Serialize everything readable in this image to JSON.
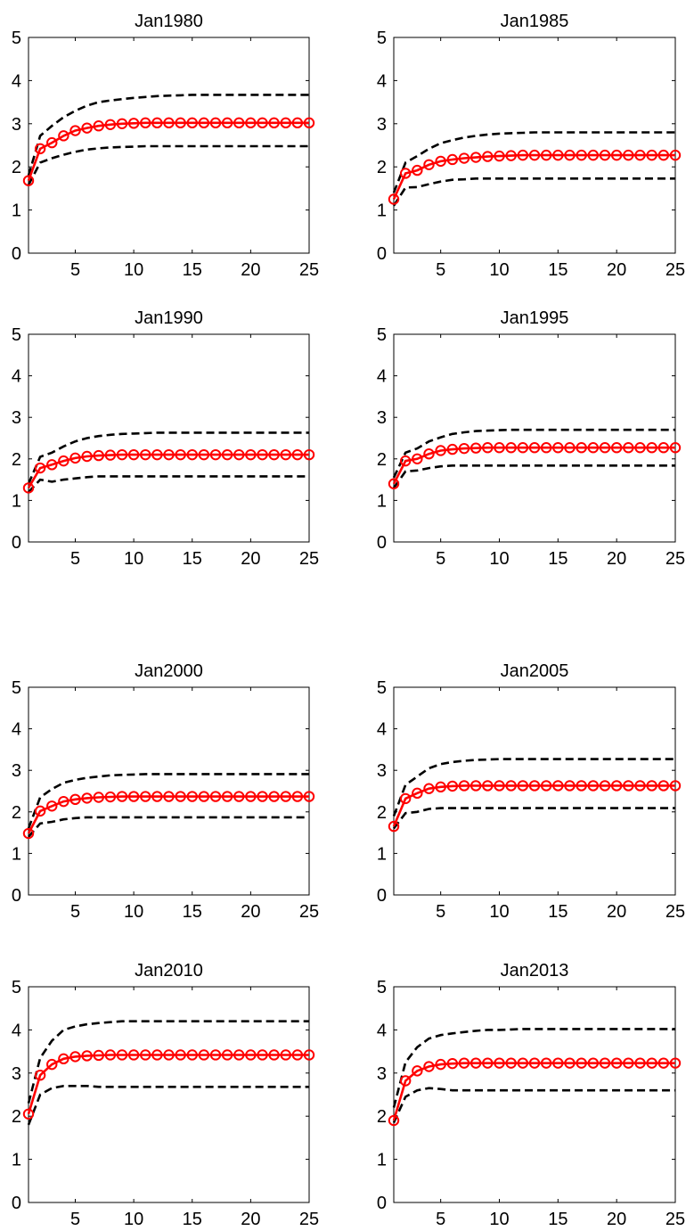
{
  "chart_data": [
    {
      "type": "line",
      "title": "Jan1980",
      "xlim": [
        1,
        25
      ],
      "ylim": [
        0,
        5
      ],
      "xticks": [
        5,
        10,
        15,
        20,
        25
      ],
      "yticks": [
        0,
        1,
        2,
        3,
        4,
        5
      ],
      "x": [
        1,
        2,
        3,
        4,
        5,
        6,
        7,
        8,
        9,
        10,
        11,
        12,
        13,
        14,
        15,
        16,
        17,
        18,
        19,
        20,
        21,
        22,
        23,
        24,
        25
      ],
      "series": [
        {
          "role": "upper",
          "style": "dashed",
          "color": "#000000",
          "values": [
            1.8,
            2.72,
            2.95,
            3.15,
            3.3,
            3.42,
            3.5,
            3.54,
            3.57,
            3.6,
            3.62,
            3.64,
            3.65,
            3.66,
            3.67,
            3.67,
            3.67,
            3.67,
            3.67,
            3.67,
            3.67,
            3.67,
            3.67,
            3.67,
            3.67
          ]
        },
        {
          "role": "estimate",
          "style": "solid-circle",
          "color": "#ff0000",
          "values": [
            1.68,
            2.42,
            2.56,
            2.72,
            2.84,
            2.9,
            2.95,
            2.98,
            3.0,
            3.01,
            3.02,
            3.02,
            3.02,
            3.02,
            3.02,
            3.02,
            3.02,
            3.02,
            3.02,
            3.02,
            3.02,
            3.02,
            3.02,
            3.02,
            3.02
          ]
        },
        {
          "role": "lower",
          "style": "dashed",
          "color": "#000000",
          "values": [
            1.58,
            2.1,
            2.2,
            2.28,
            2.35,
            2.4,
            2.43,
            2.45,
            2.46,
            2.47,
            2.48,
            2.48,
            2.48,
            2.48,
            2.48,
            2.48,
            2.48,
            2.48,
            2.48,
            2.48,
            2.48,
            2.48,
            2.48,
            2.48,
            2.48
          ]
        }
      ]
    },
    {
      "type": "line",
      "title": "Jan1985",
      "xlim": [
        1,
        25
      ],
      "ylim": [
        0,
        5
      ],
      "xticks": [
        5,
        10,
        15,
        20,
        25
      ],
      "yticks": [
        0,
        1,
        2,
        3,
        4,
        5
      ],
      "x": [
        1,
        2,
        3,
        4,
        5,
        6,
        7,
        8,
        9,
        10,
        11,
        12,
        13,
        14,
        15,
        16,
        17,
        18,
        19,
        20,
        21,
        22,
        23,
        24,
        25
      ],
      "series": [
        {
          "role": "upper",
          "style": "dashed",
          "color": "#000000",
          "values": [
            1.4,
            2.1,
            2.25,
            2.42,
            2.55,
            2.62,
            2.68,
            2.72,
            2.75,
            2.77,
            2.78,
            2.79,
            2.8,
            2.8,
            2.8,
            2.8,
            2.8,
            2.8,
            2.8,
            2.8,
            2.8,
            2.8,
            2.8,
            2.8,
            2.8
          ]
        },
        {
          "role": "estimate",
          "style": "solid-circle",
          "color": "#ff0000",
          "values": [
            1.25,
            1.85,
            1.92,
            2.05,
            2.13,
            2.17,
            2.2,
            2.22,
            2.24,
            2.25,
            2.26,
            2.27,
            2.27,
            2.27,
            2.27,
            2.27,
            2.27,
            2.27,
            2.27,
            2.27,
            2.27,
            2.27,
            2.27,
            2.27,
            2.27
          ]
        },
        {
          "role": "lower",
          "style": "dashed",
          "color": "#000000",
          "values": [
            1.1,
            1.52,
            1.53,
            1.6,
            1.66,
            1.7,
            1.71,
            1.73,
            1.73,
            1.73,
            1.73,
            1.73,
            1.73,
            1.73,
            1.73,
            1.73,
            1.73,
            1.73,
            1.73,
            1.73,
            1.73,
            1.73,
            1.73,
            1.73,
            1.73
          ]
        }
      ]
    },
    {
      "type": "line",
      "title": "Jan1990",
      "xlim": [
        1,
        25
      ],
      "ylim": [
        0,
        5
      ],
      "xticks": [
        5,
        10,
        15,
        20,
        25
      ],
      "yticks": [
        0,
        1,
        2,
        3,
        4,
        5
      ],
      "x": [
        1,
        2,
        3,
        4,
        5,
        6,
        7,
        8,
        9,
        10,
        11,
        12,
        13,
        14,
        15,
        16,
        17,
        18,
        19,
        20,
        21,
        22,
        23,
        24,
        25
      ],
      "series": [
        {
          "role": "upper",
          "style": "dashed",
          "color": "#000000",
          "values": [
            1.4,
            2.05,
            2.15,
            2.3,
            2.42,
            2.5,
            2.55,
            2.58,
            2.6,
            2.61,
            2.62,
            2.63,
            2.63,
            2.63,
            2.63,
            2.63,
            2.63,
            2.63,
            2.63,
            2.63,
            2.63,
            2.63,
            2.63,
            2.63,
            2.63
          ]
        },
        {
          "role": "estimate",
          "style": "solid-circle",
          "color": "#ff0000",
          "values": [
            1.3,
            1.78,
            1.86,
            1.95,
            2.02,
            2.06,
            2.08,
            2.09,
            2.1,
            2.1,
            2.1,
            2.1,
            2.1,
            2.1,
            2.1,
            2.1,
            2.1,
            2.1,
            2.1,
            2.1,
            2.1,
            2.1,
            2.1,
            2.1,
            2.1
          ]
        },
        {
          "role": "lower",
          "style": "dashed",
          "color": "#000000",
          "values": [
            1.2,
            1.5,
            1.45,
            1.5,
            1.53,
            1.56,
            1.58,
            1.58,
            1.58,
            1.58,
            1.58,
            1.58,
            1.58,
            1.58,
            1.58,
            1.58,
            1.58,
            1.58,
            1.58,
            1.58,
            1.58,
            1.58,
            1.58,
            1.58,
            1.58
          ]
        }
      ]
    },
    {
      "type": "line",
      "title": "Jan1995",
      "xlim": [
        1,
        25
      ],
      "ylim": [
        0,
        5
      ],
      "xticks": [
        5,
        10,
        15,
        20,
        25
      ],
      "yticks": [
        0,
        1,
        2,
        3,
        4,
        5
      ],
      "x": [
        1,
        2,
        3,
        4,
        5,
        6,
        7,
        8,
        9,
        10,
        11,
        12,
        13,
        14,
        15,
        16,
        17,
        18,
        19,
        20,
        21,
        22,
        23,
        24,
        25
      ],
      "series": [
        {
          "role": "upper",
          "style": "dashed",
          "color": "#000000",
          "values": [
            1.55,
            2.15,
            2.25,
            2.42,
            2.52,
            2.6,
            2.64,
            2.67,
            2.68,
            2.69,
            2.7,
            2.7,
            2.7,
            2.7,
            2.7,
            2.7,
            2.7,
            2.7,
            2.7,
            2.7,
            2.7,
            2.7,
            2.7,
            2.7,
            2.7
          ]
        },
        {
          "role": "estimate",
          "style": "solid-circle",
          "color": "#ff0000",
          "values": [
            1.4,
            1.95,
            2.0,
            2.12,
            2.2,
            2.23,
            2.25,
            2.26,
            2.27,
            2.27,
            2.27,
            2.27,
            2.27,
            2.27,
            2.27,
            2.27,
            2.27,
            2.27,
            2.27,
            2.27,
            2.27,
            2.27,
            2.27,
            2.27,
            2.27
          ]
        },
        {
          "role": "lower",
          "style": "dashed",
          "color": "#000000",
          "values": [
            1.3,
            1.7,
            1.72,
            1.78,
            1.82,
            1.84,
            1.84,
            1.84,
            1.84,
            1.84,
            1.84,
            1.84,
            1.84,
            1.84,
            1.84,
            1.84,
            1.84,
            1.84,
            1.84,
            1.84,
            1.84,
            1.84,
            1.84,
            1.84,
            1.84
          ]
        }
      ]
    },
    {
      "type": "line",
      "title": "Jan2000",
      "xlim": [
        1,
        25
      ],
      "ylim": [
        0,
        5
      ],
      "xticks": [
        5,
        10,
        15,
        20,
        25
      ],
      "yticks": [
        0,
        1,
        2,
        3,
        4,
        5
      ],
      "x": [
        1,
        2,
        3,
        4,
        5,
        6,
        7,
        8,
        9,
        10,
        11,
        12,
        13,
        14,
        15,
        16,
        17,
        18,
        19,
        20,
        21,
        22,
        23,
        24,
        25
      ],
      "series": [
        {
          "role": "upper",
          "style": "dashed",
          "color": "#000000",
          "values": [
            1.6,
            2.35,
            2.55,
            2.7,
            2.77,
            2.82,
            2.85,
            2.88,
            2.89,
            2.9,
            2.91,
            2.91,
            2.91,
            2.91,
            2.91,
            2.91,
            2.91,
            2.91,
            2.91,
            2.91,
            2.91,
            2.91,
            2.91,
            2.91,
            2.91
          ]
        },
        {
          "role": "estimate",
          "style": "solid-circle",
          "color": "#ff0000",
          "values": [
            1.48,
            2.02,
            2.14,
            2.25,
            2.3,
            2.33,
            2.35,
            2.36,
            2.37,
            2.37,
            2.37,
            2.37,
            2.37,
            2.37,
            2.37,
            2.37,
            2.37,
            2.37,
            2.37,
            2.37,
            2.37,
            2.37,
            2.37,
            2.37,
            2.37
          ]
        },
        {
          "role": "lower",
          "style": "dashed",
          "color": "#000000",
          "values": [
            1.4,
            1.72,
            1.76,
            1.82,
            1.85,
            1.87,
            1.87,
            1.87,
            1.87,
            1.87,
            1.87,
            1.87,
            1.87,
            1.87,
            1.87,
            1.87,
            1.87,
            1.87,
            1.87,
            1.87,
            1.87,
            1.87,
            1.87,
            1.87,
            1.87
          ]
        }
      ]
    },
    {
      "type": "line",
      "title": "Jan2005",
      "xlim": [
        1,
        25
      ],
      "ylim": [
        0,
        5
      ],
      "xticks": [
        5,
        10,
        15,
        20,
        25
      ],
      "yticks": [
        0,
        1,
        2,
        3,
        4,
        5
      ],
      "x": [
        1,
        2,
        3,
        4,
        5,
        6,
        7,
        8,
        9,
        10,
        11,
        12,
        13,
        14,
        15,
        16,
        17,
        18,
        19,
        20,
        21,
        22,
        23,
        24,
        25
      ],
      "series": [
        {
          "role": "upper",
          "style": "dashed",
          "color": "#000000",
          "values": [
            1.9,
            2.65,
            2.85,
            3.05,
            3.15,
            3.2,
            3.23,
            3.25,
            3.26,
            3.27,
            3.27,
            3.27,
            3.27,
            3.27,
            3.27,
            3.27,
            3.27,
            3.27,
            3.27,
            3.27,
            3.27,
            3.27,
            3.27,
            3.27,
            3.27
          ]
        },
        {
          "role": "estimate",
          "style": "solid-circle",
          "color": "#ff0000",
          "values": [
            1.65,
            2.32,
            2.45,
            2.56,
            2.6,
            2.62,
            2.63,
            2.63,
            2.63,
            2.63,
            2.63,
            2.63,
            2.63,
            2.63,
            2.63,
            2.63,
            2.63,
            2.63,
            2.63,
            2.63,
            2.63,
            2.63,
            2.63,
            2.63,
            2.63
          ]
        },
        {
          "role": "lower",
          "style": "dashed",
          "color": "#000000",
          "values": [
            1.6,
            1.97,
            2.0,
            2.07,
            2.09,
            2.09,
            2.09,
            2.09,
            2.09,
            2.09,
            2.09,
            2.09,
            2.09,
            2.09,
            2.09,
            2.09,
            2.09,
            2.09,
            2.09,
            2.09,
            2.09,
            2.09,
            2.09,
            2.09,
            2.09
          ]
        }
      ]
    },
    {
      "type": "line",
      "title": "Jan2010",
      "xlim": [
        1,
        25
      ],
      "ylim": [
        0,
        5
      ],
      "xticks": [
        5,
        10,
        15,
        20,
        25
      ],
      "yticks": [
        0,
        1,
        2,
        3,
        4,
        5
      ],
      "x": [
        1,
        2,
        3,
        4,
        5,
        6,
        7,
        8,
        9,
        10,
        11,
        12,
        13,
        14,
        15,
        16,
        17,
        18,
        19,
        20,
        21,
        22,
        23,
        24,
        25
      ],
      "series": [
        {
          "role": "upper",
          "style": "dashed",
          "color": "#000000",
          "values": [
            2.3,
            3.35,
            3.75,
            4.0,
            4.08,
            4.13,
            4.16,
            4.18,
            4.2,
            4.2,
            4.2,
            4.2,
            4.2,
            4.2,
            4.2,
            4.2,
            4.2,
            4.2,
            4.2,
            4.2,
            4.2,
            4.2,
            4.2,
            4.2,
            4.2
          ]
        },
        {
          "role": "estimate",
          "style": "solid-circle",
          "color": "#ff0000",
          "values": [
            2.05,
            2.95,
            3.2,
            3.33,
            3.38,
            3.4,
            3.41,
            3.42,
            3.42,
            3.42,
            3.42,
            3.42,
            3.42,
            3.42,
            3.42,
            3.42,
            3.42,
            3.42,
            3.42,
            3.42,
            3.42,
            3.42,
            3.42,
            3.42,
            3.42
          ]
        },
        {
          "role": "lower",
          "style": "dashed",
          "color": "#000000",
          "values": [
            1.8,
            2.5,
            2.65,
            2.7,
            2.7,
            2.7,
            2.68,
            2.68,
            2.68,
            2.68,
            2.68,
            2.68,
            2.68,
            2.68,
            2.68,
            2.68,
            2.68,
            2.68,
            2.68,
            2.68,
            2.68,
            2.68,
            2.68,
            2.68,
            2.68
          ]
        }
      ]
    },
    {
      "type": "line",
      "title": "Jan2013",
      "xlim": [
        1,
        25
      ],
      "ylim": [
        0,
        5
      ],
      "xticks": [
        5,
        10,
        15,
        20,
        25
      ],
      "yticks": [
        0,
        1,
        2,
        3,
        4,
        5
      ],
      "x": [
        1,
        2,
        3,
        4,
        5,
        6,
        7,
        8,
        9,
        10,
        11,
        12,
        13,
        14,
        15,
        16,
        17,
        18,
        19,
        20,
        21,
        22,
        23,
        24,
        25
      ],
      "series": [
        {
          "role": "upper",
          "style": "dashed",
          "color": "#000000",
          "values": [
            2.2,
            3.25,
            3.6,
            3.8,
            3.88,
            3.92,
            3.95,
            3.98,
            4.0,
            4.0,
            4.01,
            4.02,
            4.02,
            4.02,
            4.02,
            4.02,
            4.02,
            4.02,
            4.02,
            4.02,
            4.02,
            4.02,
            4.02,
            4.02,
            4.02
          ]
        },
        {
          "role": "estimate",
          "style": "solid-circle",
          "color": "#ff0000",
          "values": [
            1.9,
            2.82,
            3.05,
            3.15,
            3.2,
            3.22,
            3.23,
            3.23,
            3.23,
            3.23,
            3.23,
            3.23,
            3.23,
            3.23,
            3.23,
            3.23,
            3.23,
            3.23,
            3.23,
            3.23,
            3.23,
            3.23,
            3.23,
            3.23,
            3.23
          ]
        },
        {
          "role": "lower",
          "style": "dashed",
          "color": "#000000",
          "values": [
            1.85,
            2.45,
            2.6,
            2.65,
            2.63,
            2.6,
            2.6,
            2.6,
            2.6,
            2.6,
            2.6,
            2.6,
            2.6,
            2.6,
            2.6,
            2.6,
            2.6,
            2.6,
            2.6,
            2.6,
            2.6,
            2.6,
            2.6,
            2.6,
            2.6
          ]
        }
      ]
    }
  ]
}
